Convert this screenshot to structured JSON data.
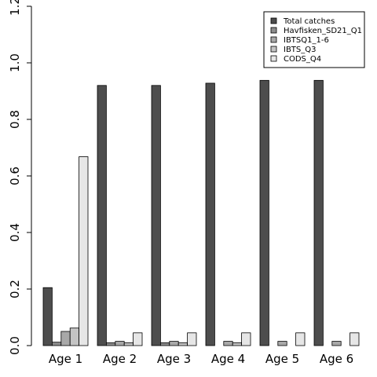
{
  "chart_data": {
    "type": "bar",
    "categories": [
      "Age 1",
      "Age 2",
      "Age 3",
      "Age 4",
      "Age 5",
      "Age 6"
    ],
    "series": [
      {
        "name": "Total catches",
        "color": "#4d4d4d",
        "values": [
          0.205,
          0.92,
          0.92,
          0.928,
          0.938,
          0.938
        ]
      },
      {
        "name": "Havfisken_SD21_Q1",
        "color": "#8c8c8c",
        "values": [
          0.012,
          0.01,
          0.01,
          0.0,
          0.0,
          0.0
        ]
      },
      {
        "name": "IBTSQ1_1-6",
        "color": "#a8a8a8",
        "values": [
          0.05,
          0.015,
          0.015,
          0.015,
          0.015,
          0.015
        ]
      },
      {
        "name": "IBTS_Q3",
        "color": "#c4c4c4",
        "values": [
          0.062,
          0.01,
          0.01,
          0.01,
          0.0,
          0.0
        ]
      },
      {
        "name": "CODS_Q4",
        "color": "#e6e6e6",
        "values": [
          0.668,
          0.045,
          0.045,
          0.045,
          0.045,
          0.045
        ]
      }
    ],
    "yticks": [
      "0.0",
      "0.2",
      "0.4",
      "0.6",
      "0.8",
      "1.0",
      "1.2"
    ],
    "ylim": [
      0,
      1.2
    ],
    "legend_position": "top-right",
    "grid": false,
    "title": "",
    "xlabel": "",
    "ylabel": ""
  }
}
